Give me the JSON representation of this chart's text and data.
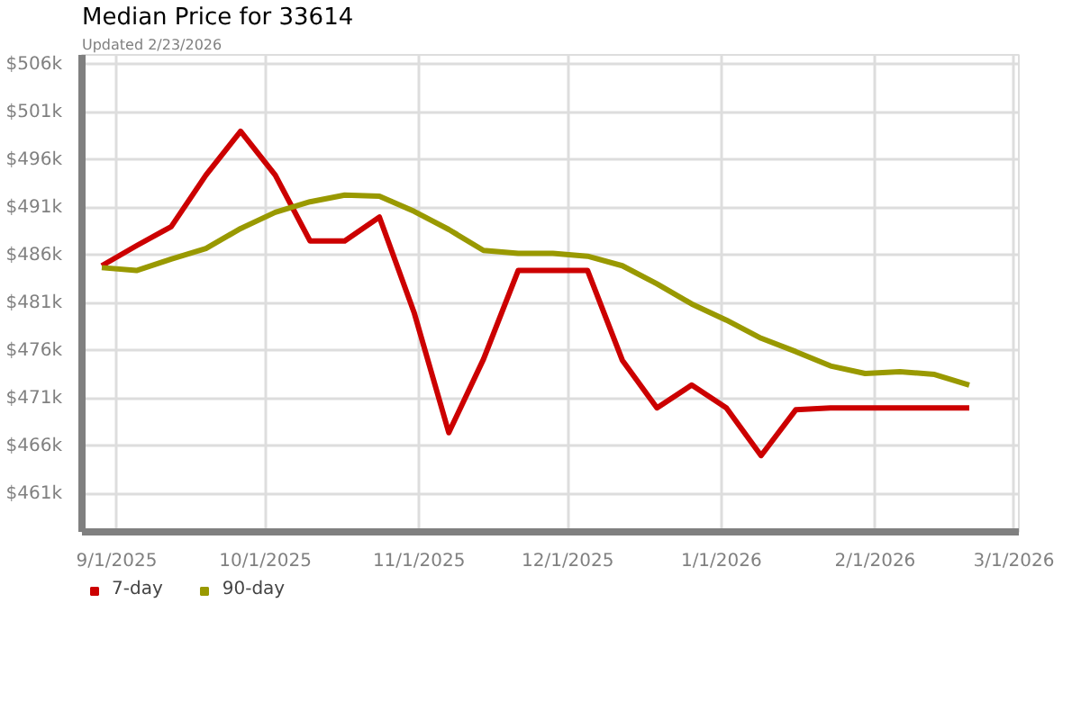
{
  "chart_data": {
    "type": "line",
    "title": "Median Price for 33614",
    "subtitle": "Updated 2/23/2026",
    "x": [
      "2025-08-29",
      "2025-09-05",
      "2025-09-12",
      "2025-09-19",
      "2025-09-26",
      "2025-10-03",
      "2025-10-10",
      "2025-10-17",
      "2025-10-24",
      "2025-10-31",
      "2025-11-07",
      "2025-11-14",
      "2025-11-21",
      "2025-11-28",
      "2025-12-05",
      "2025-12-12",
      "2025-12-19",
      "2025-12-26",
      "2026-01-02",
      "2026-01-09",
      "2026-01-16",
      "2026-01-23",
      "2026-01-30",
      "2026-02-06",
      "2026-02-13",
      "2026-02-20"
    ],
    "series": [
      {
        "name": "7-day",
        "color": "#cc0000",
        "values": [
          484.9,
          487.0,
          489.0,
          494.4,
          499.0,
          494.4,
          487.5,
          487.5,
          490.0,
          480.0,
          467.4,
          475.1,
          484.4,
          484.4,
          484.4,
          475.0,
          470.0,
          472.4,
          470.0,
          465.0,
          469.8,
          470.0,
          470.0,
          470.0,
          470.0,
          470.0
        ]
      },
      {
        "name": "90-day",
        "color": "#999900",
        "values": [
          484.7,
          484.4,
          485.6,
          486.7,
          488.8,
          490.5,
          491.6,
          492.3,
          492.2,
          490.6,
          488.7,
          486.5,
          486.2,
          486.2,
          485.9,
          484.9,
          483.0,
          480.9,
          479.2,
          477.3,
          475.9,
          474.4,
          473.6,
          473.8,
          473.5,
          472.4
        ]
      }
    ],
    "xlim": [
      "2025-08-25",
      "2026-03-02"
    ],
    "xticks": [
      {
        "value": "2025-09-01",
        "label": "9/1/2025"
      },
      {
        "value": "2025-10-01",
        "label": "10/1/2025"
      },
      {
        "value": "2025-11-01",
        "label": "11/1/2025"
      },
      {
        "value": "2025-12-01",
        "label": "12/1/2025"
      },
      {
        "value": "2026-01-01",
        "label": "1/1/2026"
      },
      {
        "value": "2026-02-01",
        "label": "2/1/2026"
      },
      {
        "value": "2026-03-01",
        "label": "3/1/2026"
      }
    ],
    "ylim": [
      457,
      507
    ],
    "yticks": [
      {
        "value": 461,
        "label": "$461k"
      },
      {
        "value": 466,
        "label": "$466k"
      },
      {
        "value": 471,
        "label": "$471k"
      },
      {
        "value": 476,
        "label": "$476k"
      },
      {
        "value": 481,
        "label": "$481k"
      },
      {
        "value": 486,
        "label": "$486k"
      },
      {
        "value": 491,
        "label": "$491k"
      },
      {
        "value": 496,
        "label": "$496k"
      },
      {
        "value": 501,
        "label": "$501k"
      },
      {
        "value": 506,
        "label": "$506k"
      }
    ],
    "grid": true,
    "legend": "bottom left",
    "marker": "none",
    "line_style": "solid"
  }
}
